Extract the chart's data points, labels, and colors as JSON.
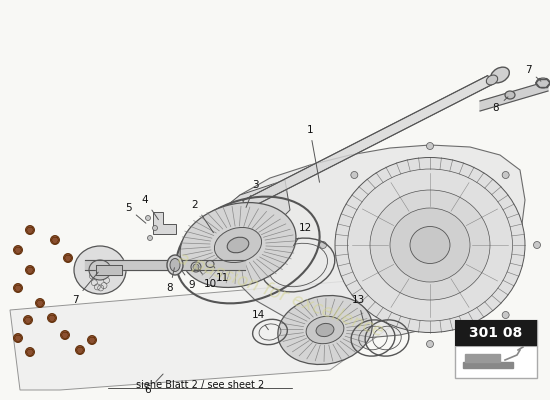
{
  "bg_color": "#f8f8f5",
  "page_ref": "301 08",
  "watermark": "a passion for excellence",
  "note_text": "siehe Blatt 2 / see sheet 2",
  "box_color": "#1a1a1a",
  "box_text_color": "#ffffff",
  "lc": "#555555",
  "lc_light": "#888888",
  "bolt_face": "#8B5030",
  "bolt_edge": "#5a2800",
  "disc_face": "#d4d4d4",
  "cover_face": "#e2e2e2",
  "gb_face": "#e8e8e8"
}
